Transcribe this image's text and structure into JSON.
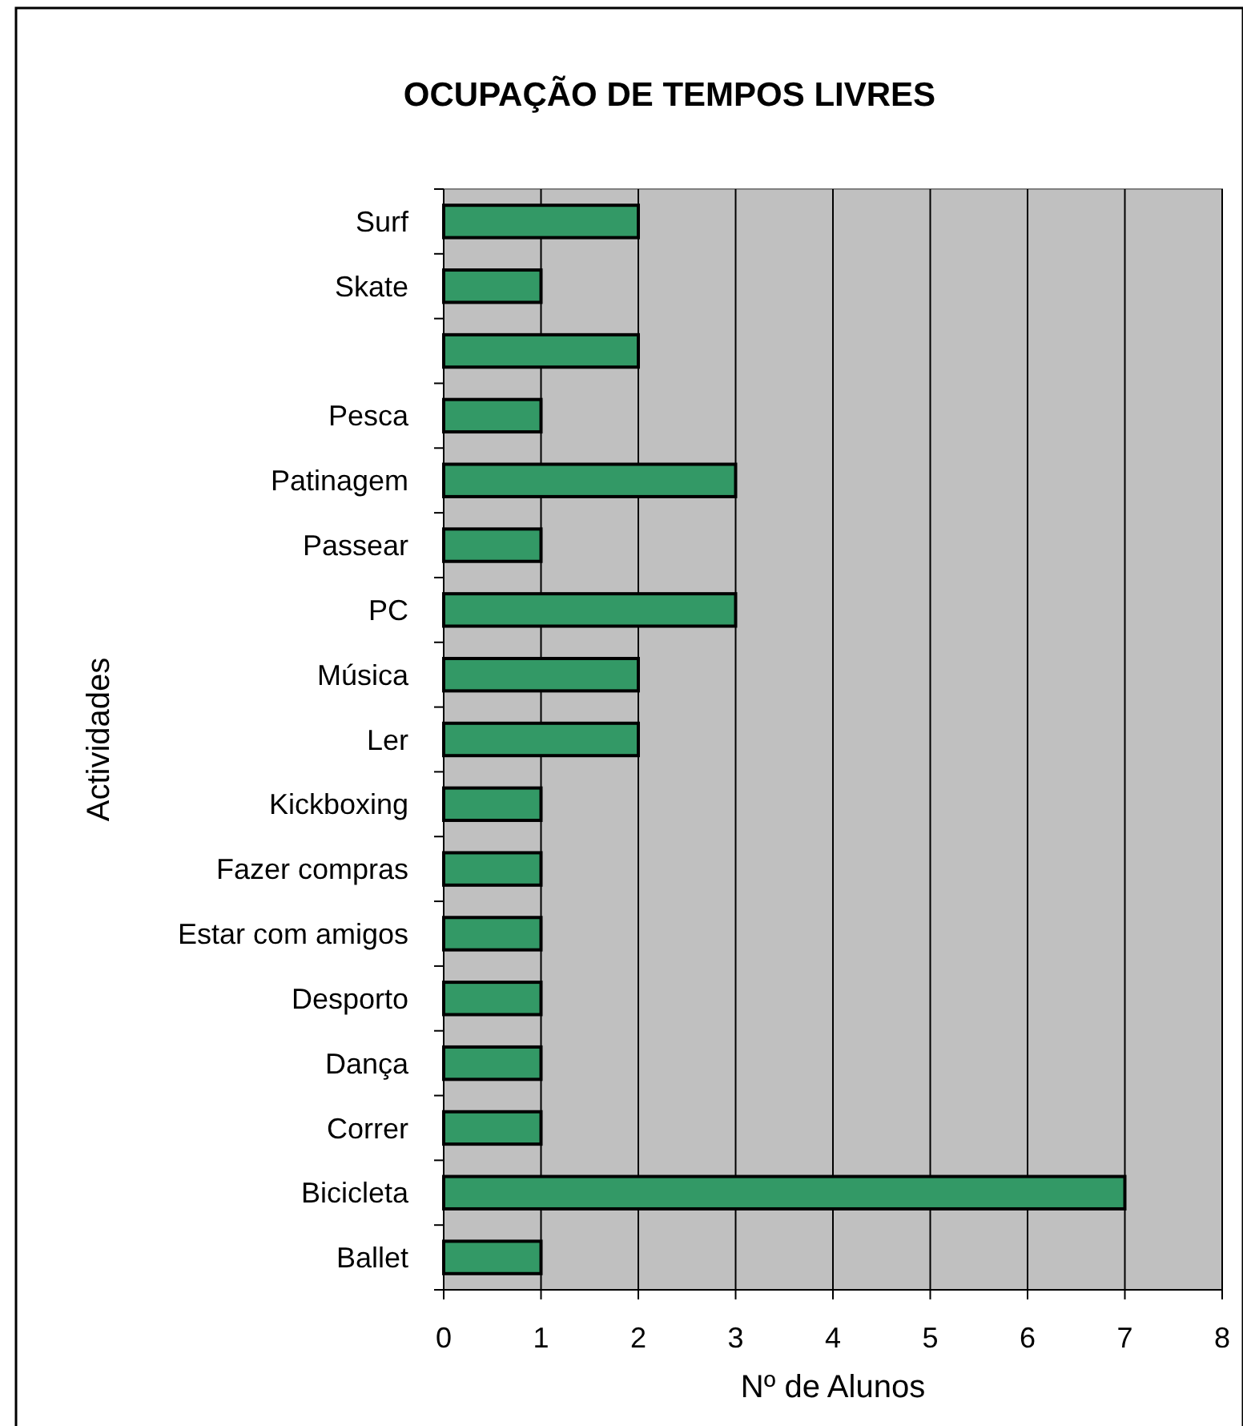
{
  "chart_data": {
    "type": "bar",
    "orientation": "horizontal",
    "title": "OCUPAÇÃO DE TEMPOS LIVRES",
    "xlabel": "Nº de Alunos",
    "ylabel": "Actividades",
    "categories": [
      "Surf",
      "Skate",
      null,
      "Pesca",
      "Patinagem",
      "Passear",
      "PC",
      "Música",
      "Ler",
      "Kickboxing",
      "Fazer compras",
      "Estar com amigos",
      "Desporto",
      "Dança",
      "Correr",
      "Bicicleta",
      "Ballet"
    ],
    "values": [
      2,
      1,
      2,
      1,
      3,
      1,
      3,
      2,
      2,
      1,
      1,
      1,
      1,
      1,
      1,
      7,
      1
    ],
    "color": "#339966",
    "xlim": [
      0,
      8
    ],
    "xticks": [
      0,
      1,
      2,
      3,
      4,
      5,
      6,
      7,
      8
    ],
    "grid": "x"
  }
}
